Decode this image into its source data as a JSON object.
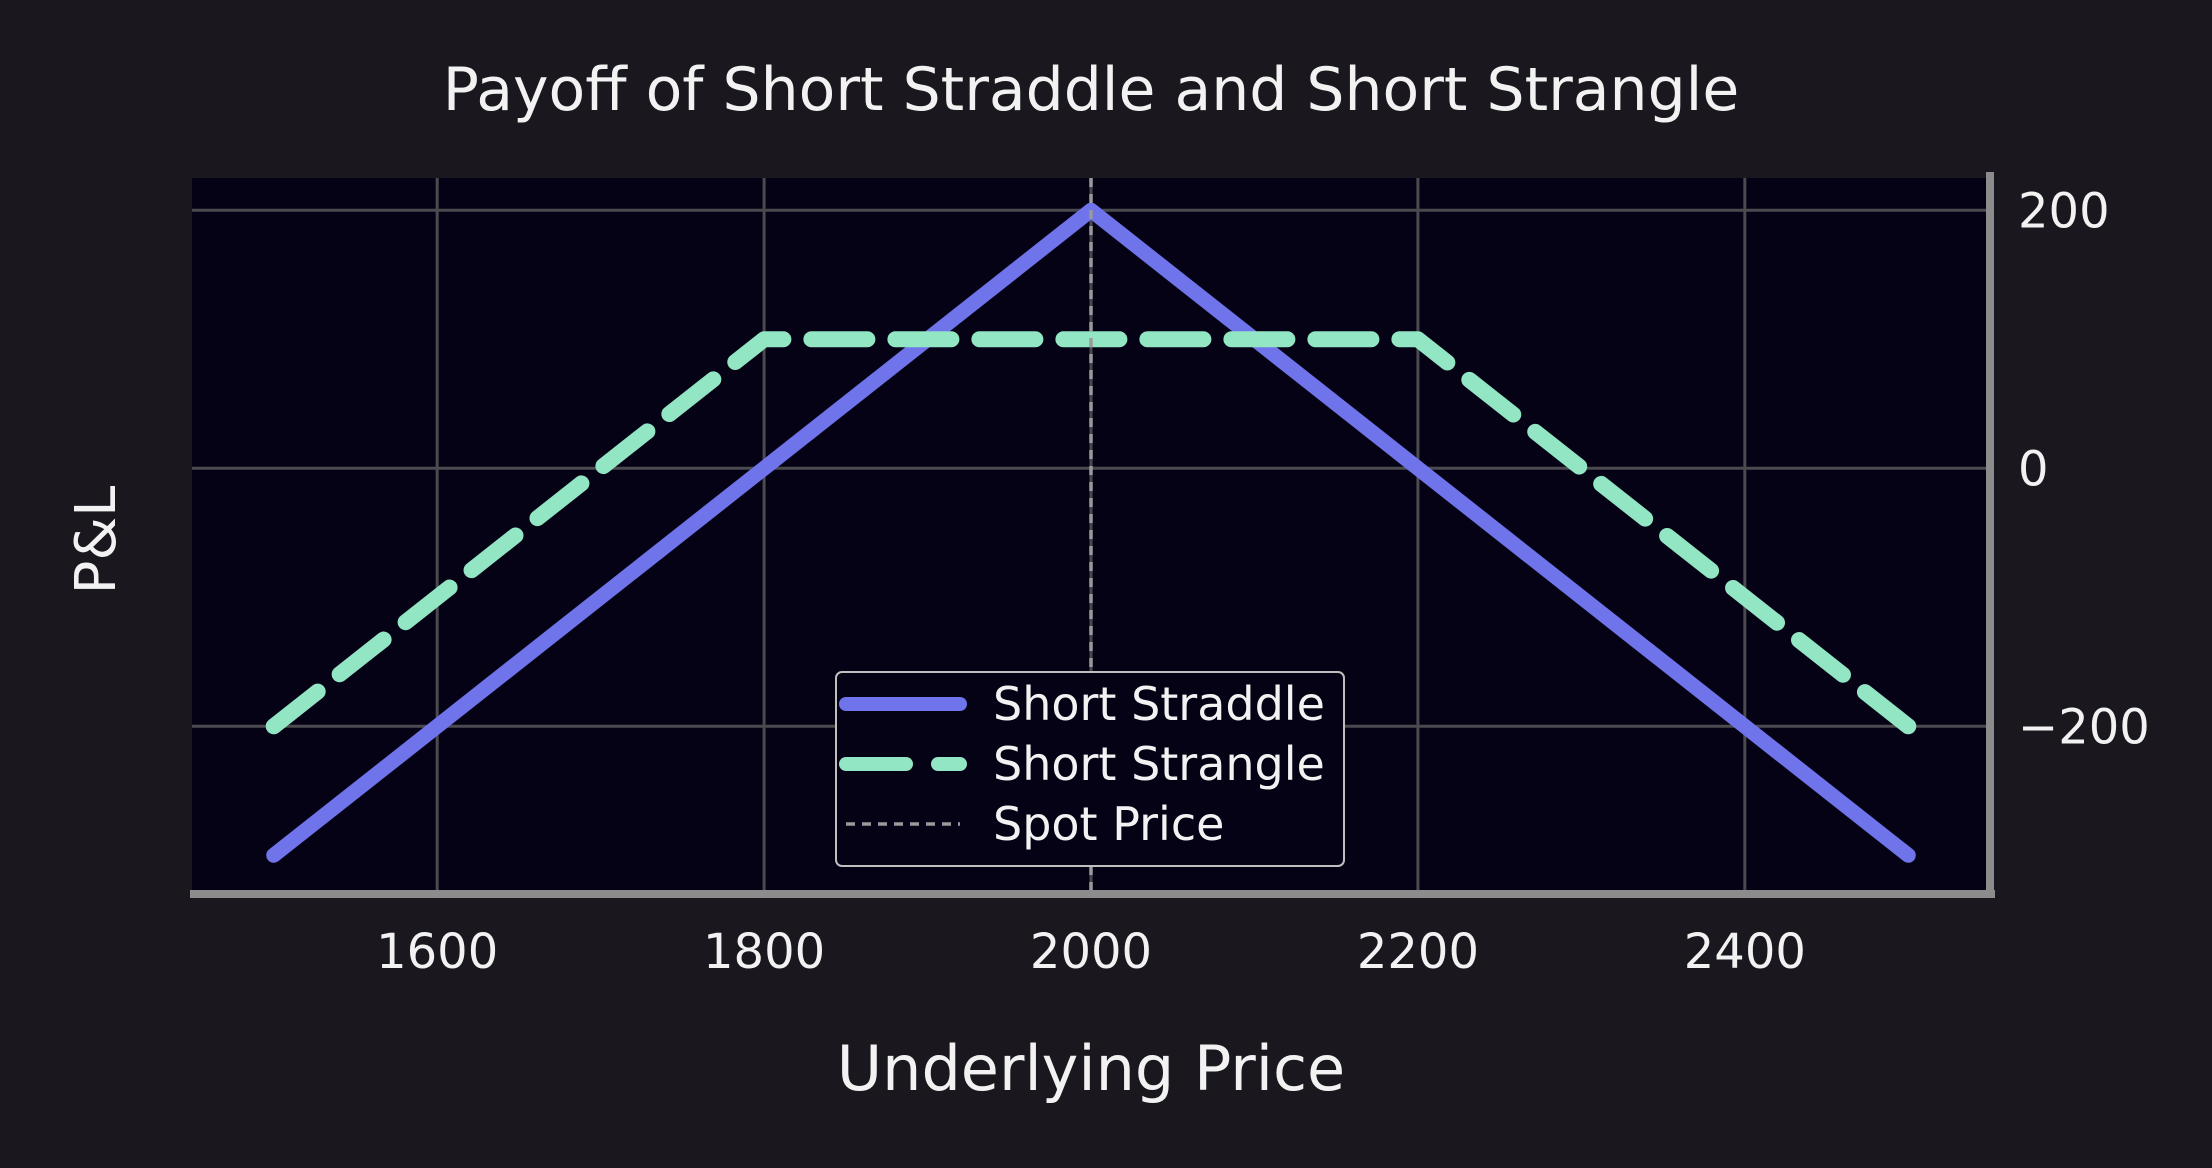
{
  "chart_data": {
    "type": "line",
    "title": "Payoff of Short Straddle and Short Strangle",
    "xlabel": "Underlying Price",
    "ylabel": "P&L",
    "xlim": [
      1450,
      2550
    ],
    "ylim": [
      -330,
      225
    ],
    "xticks": [
      1600,
      1800,
      2000,
      2200,
      2400
    ],
    "yticks": [
      200,
      0,
      -200
    ],
    "xtick_labels": [
      "1600",
      "1800",
      "2000",
      "2200",
      "2400"
    ],
    "ytick_labels": [
      "200",
      "0",
      "−200"
    ],
    "y_axis_side": "right",
    "grid": true,
    "legend_placement": "lower-center",
    "series": [
      {
        "name": "Short Straddle",
        "style": "solid",
        "color": "#6f74ea",
        "x": [
          1500,
          2000,
          2500
        ],
        "y": [
          -300,
          200,
          -300
        ]
      },
      {
        "name": "Short Strangle",
        "style": "dashed",
        "color": "#92e6c4",
        "x": [
          1500,
          1800,
          2200,
          2500
        ],
        "y": [
          -200,
          100,
          100,
          -200
        ]
      },
      {
        "name": "Spot Price",
        "style": "dotted-vertical",
        "color": "#9a9a9a",
        "x_value": 2000
      }
    ]
  }
}
